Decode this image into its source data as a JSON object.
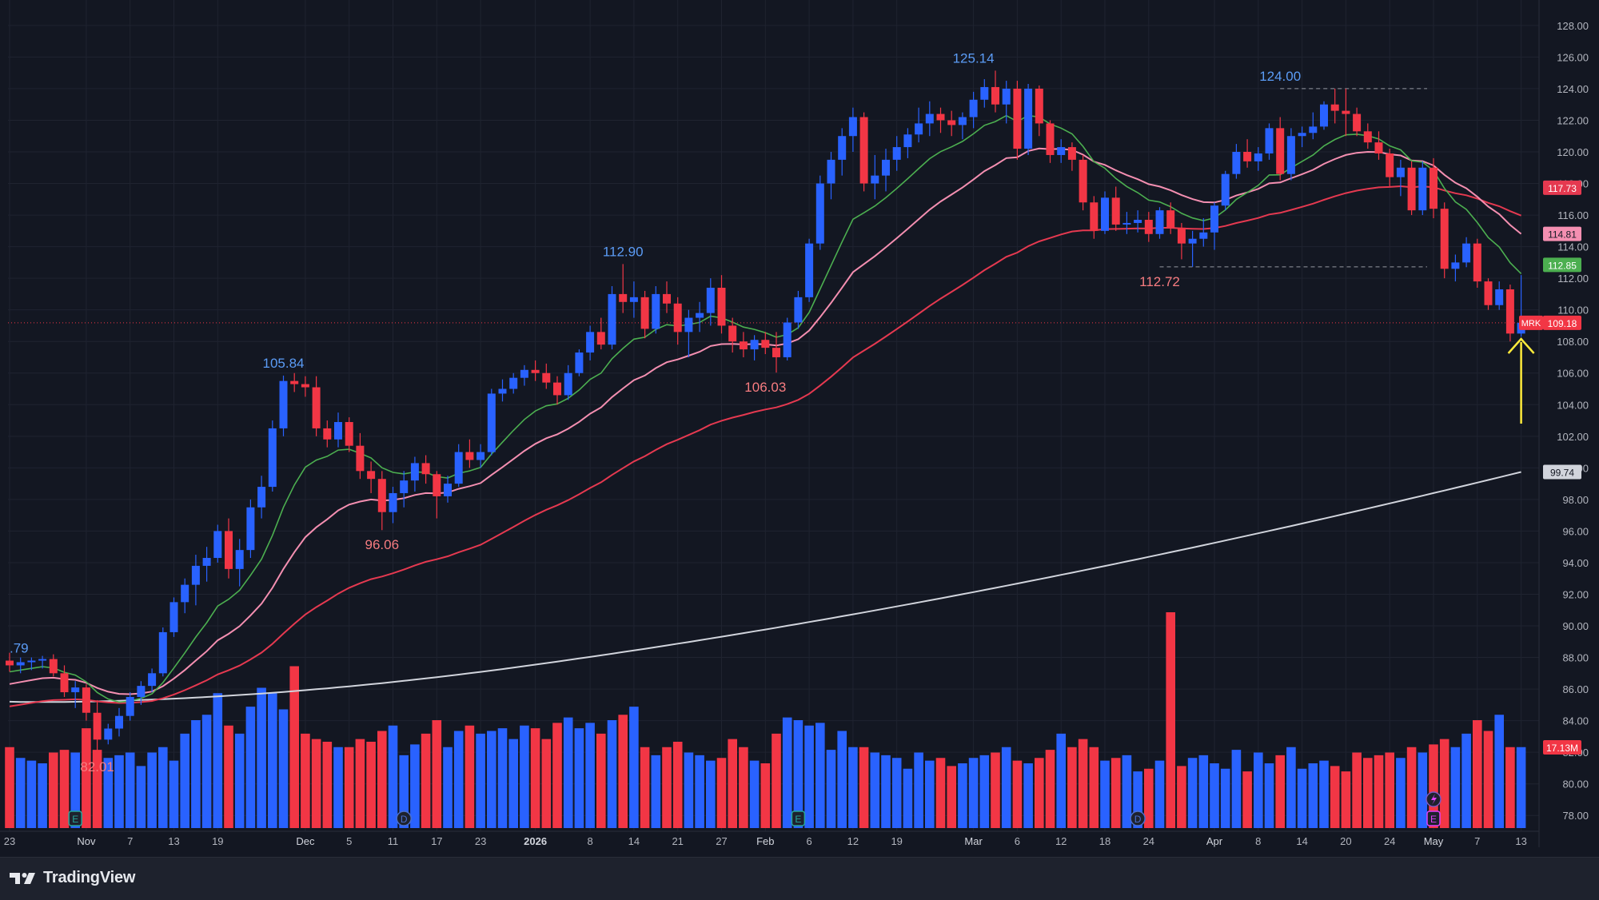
{
  "app": {
    "brand": "TradingView",
    "brand_icon": "tradingview-logo-icon"
  },
  "colors": {
    "background": "#131722",
    "grid": "#1f2330",
    "up": "#2962ff",
    "down": "#f23645",
    "ema_fast": "#4caf50",
    "ema_mid": "#f48fb1",
    "ema_slow": "#e53950",
    "sma_long": "#d1d4dc",
    "arrow": "#ffeb3b"
  },
  "chart_data": {
    "type": "candlestick",
    "symbol": "MRK",
    "last_price": "109.18",
    "price_axis": {
      "min": 77,
      "max": 128.6,
      "ticks": [
        "78.00",
        "80.00",
        "82.00",
        "84.00",
        "86.00",
        "88.00",
        "90.00",
        "92.00",
        "94.00",
        "96.00",
        "98.00",
        "100.00",
        "102.00",
        "104.00",
        "106.00",
        "108.00",
        "110.00",
        "112.00",
        "114.00",
        "116.00",
        "118.00",
        "120.00",
        "122.00",
        "124.00",
        "126.00",
        "128.00"
      ]
    },
    "x_axis_labels": [
      {
        "label": "23",
        "bar": 0
      },
      {
        "label": "Nov",
        "bar": 7
      },
      {
        "label": "7",
        "bar": 11
      },
      {
        "label": "13",
        "bar": 15
      },
      {
        "label": "19",
        "bar": 19
      },
      {
        "label": "Dec",
        "bar": 27
      },
      {
        "label": "5",
        "bar": 31
      },
      {
        "label": "11",
        "bar": 35
      },
      {
        "label": "17",
        "bar": 39
      },
      {
        "label": "23",
        "bar": 43
      },
      {
        "label": "2026",
        "bar": 48
      },
      {
        "label": "8",
        "bar": 53
      },
      {
        "label": "14",
        "bar": 57
      },
      {
        "label": "21",
        "bar": 61
      },
      {
        "label": "27",
        "bar": 65
      },
      {
        "label": "Feb",
        "bar": 69
      },
      {
        "label": "6",
        "bar": 73
      },
      {
        "label": "12",
        "bar": 77
      },
      {
        "label": "19",
        "bar": 81
      },
      {
        "label": "Mar",
        "bar": 88
      },
      {
        "label": "6",
        "bar": 92
      },
      {
        "label": "12",
        "bar": 96
      },
      {
        "label": "18",
        "bar": 100
      },
      {
        "label": "24",
        "bar": 104
      },
      {
        "label": "Apr",
        "bar": 110
      },
      {
        "label": "8",
        "bar": 114
      },
      {
        "label": "14",
        "bar": 118
      },
      {
        "label": "20",
        "bar": 122
      },
      {
        "label": "24",
        "bar": 126
      },
      {
        "label": "May",
        "bar": 130
      },
      {
        "label": "7",
        "bar": 134
      },
      {
        "label": "13",
        "bar": 138
      }
    ],
    "candles": [
      [
        87.8,
        88.3,
        87.1,
        87.5
      ],
      [
        87.5,
        88.0,
        87.0,
        87.7
      ],
      [
        87.7,
        88.0,
        87.2,
        87.8
      ],
      [
        87.8,
        88.1,
        87.3,
        87.9
      ],
      [
        87.9,
        88.2,
        86.8,
        87.0
      ],
      [
        87.0,
        87.5,
        85.5,
        85.8
      ],
      [
        85.8,
        86.5,
        84.8,
        86.1
      ],
      [
        86.1,
        86.3,
        84.0,
        84.5
      ],
      [
        84.5,
        85.3,
        82.0,
        82.8
      ],
      [
        82.8,
        83.8,
        82.5,
        83.5
      ],
      [
        83.5,
        84.8,
        83.0,
        84.3
      ],
      [
        84.3,
        85.8,
        84.0,
        85.5
      ],
      [
        85.5,
        86.5,
        85.0,
        86.2
      ],
      [
        86.2,
        87.3,
        85.8,
        87.0
      ],
      [
        87.0,
        89.9,
        86.8,
        89.6
      ],
      [
        89.6,
        91.8,
        89.3,
        91.5
      ],
      [
        91.5,
        93.0,
        90.8,
        92.6
      ],
      [
        92.6,
        94.5,
        91.3,
        93.8
      ],
      [
        93.8,
        95.0,
        92.8,
        94.3
      ],
      [
        94.3,
        96.4,
        94.0,
        96.0
      ],
      [
        96.0,
        96.8,
        93.0,
        93.6
      ],
      [
        93.6,
        95.5,
        92.5,
        94.8
      ],
      [
        94.8,
        98.0,
        94.3,
        97.5
      ],
      [
        97.5,
        99.5,
        96.8,
        98.8
      ],
      [
        98.8,
        103.0,
        98.5,
        102.5
      ],
      [
        102.5,
        105.84,
        102.0,
        105.5
      ],
      [
        105.5,
        106.0,
        104.8,
        105.3
      ],
      [
        105.3,
        105.8,
        104.5,
        105.1
      ],
      [
        105.1,
        105.8,
        102.0,
        102.5
      ],
      [
        102.5,
        103.0,
        101.3,
        101.8
      ],
      [
        101.8,
        103.5,
        101.3,
        102.9
      ],
      [
        102.9,
        103.2,
        101.0,
        101.4
      ],
      [
        101.4,
        102.2,
        99.3,
        99.8
      ],
      [
        99.8,
        100.4,
        98.4,
        99.3
      ],
      [
        99.3,
        99.8,
        96.06,
        97.2
      ],
      [
        97.2,
        98.8,
        96.5,
        98.4
      ],
      [
        98.4,
        99.8,
        97.5,
        99.2
      ],
      [
        99.2,
        100.7,
        98.5,
        100.3
      ],
      [
        100.3,
        100.8,
        99.0,
        99.6
      ],
      [
        99.6,
        99.8,
        96.8,
        98.2
      ],
      [
        98.2,
        99.5,
        97.8,
        99.0
      ],
      [
        99.0,
        101.5,
        98.8,
        101.0
      ],
      [
        101.0,
        101.8,
        100.0,
        100.5
      ],
      [
        100.5,
        101.5,
        100.0,
        101.0
      ],
      [
        101.0,
        105.0,
        100.8,
        104.7
      ],
      [
        104.7,
        105.6,
        104.2,
        105.0
      ],
      [
        105.0,
        106.0,
        104.7,
        105.7
      ],
      [
        105.7,
        106.5,
        105.2,
        106.2
      ],
      [
        106.2,
        106.8,
        105.5,
        106.0
      ],
      [
        106.0,
        106.6,
        105.0,
        105.4
      ],
      [
        105.4,
        105.8,
        104.0,
        104.6
      ],
      [
        104.6,
        106.5,
        104.3,
        106.0
      ],
      [
        106.0,
        107.5,
        105.8,
        107.3
      ],
      [
        107.3,
        109.0,
        106.8,
        108.6
      ],
      [
        108.6,
        109.5,
        107.5,
        107.8
      ],
      [
        107.8,
        111.5,
        107.5,
        111.0
      ],
      [
        111.0,
        112.9,
        109.8,
        110.5
      ],
      [
        110.5,
        111.8,
        109.5,
        110.8
      ],
      [
        110.8,
        111.2,
        108.2,
        108.8
      ],
      [
        108.8,
        111.5,
        108.5,
        111.0
      ],
      [
        111.0,
        111.8,
        109.8,
        110.4
      ],
      [
        110.4,
        110.8,
        107.8,
        108.6
      ],
      [
        108.6,
        110.0,
        107.0,
        109.5
      ],
      [
        109.5,
        110.5,
        108.6,
        109.8
      ],
      [
        109.8,
        112.0,
        109.0,
        111.4
      ],
      [
        111.4,
        112.2,
        108.5,
        109.0
      ],
      [
        109.0,
        109.5,
        107.3,
        108.0
      ],
      [
        108.0,
        108.6,
        107.0,
        107.5
      ],
      [
        107.5,
        108.4,
        106.8,
        108.1
      ],
      [
        108.1,
        108.6,
        107.2,
        107.6
      ],
      [
        107.6,
        108.6,
        106.03,
        107.0
      ],
      [
        107.0,
        109.5,
        106.8,
        109.2
      ],
      [
        109.2,
        111.2,
        108.8,
        110.8
      ],
      [
        110.8,
        114.5,
        110.5,
        114.2
      ],
      [
        114.2,
        118.5,
        113.8,
        118.0
      ],
      [
        118.0,
        120.0,
        117.0,
        119.5
      ],
      [
        119.5,
        121.5,
        118.5,
        121.0
      ],
      [
        121.0,
        122.8,
        120.0,
        122.2
      ],
      [
        122.2,
        122.5,
        117.5,
        118.0
      ],
      [
        118.0,
        119.8,
        117.0,
        118.5
      ],
      [
        118.5,
        120.2,
        117.5,
        119.5
      ],
      [
        119.5,
        121.0,
        118.8,
        120.3
      ],
      [
        120.3,
        121.5,
        119.6,
        121.1
      ],
      [
        121.1,
        122.8,
        120.6,
        121.8
      ],
      [
        121.8,
        123.2,
        121.0,
        122.4
      ],
      [
        122.4,
        122.8,
        121.2,
        122.0
      ],
      [
        122.0,
        122.6,
        121.0,
        121.7
      ],
      [
        121.7,
        122.5,
        120.8,
        122.2
      ],
      [
        122.2,
        123.8,
        121.5,
        123.3
      ],
      [
        123.3,
        124.6,
        122.8,
        124.1
      ],
      [
        124.1,
        125.14,
        122.5,
        123.0
      ],
      [
        123.0,
        124.5,
        121.8,
        124.0
      ],
      [
        124.0,
        124.5,
        119.5,
        120.2
      ],
      [
        120.2,
        124.3,
        119.8,
        124.0
      ],
      [
        124.0,
        124.2,
        121.0,
        121.8
      ],
      [
        121.8,
        122.0,
        119.3,
        119.8
      ],
      [
        119.8,
        120.8,
        119.3,
        120.3
      ],
      [
        120.3,
        120.6,
        118.8,
        119.5
      ],
      [
        119.5,
        119.8,
        116.3,
        116.8
      ],
      [
        116.8,
        117.2,
        114.5,
        115.0
      ],
      [
        115.0,
        117.5,
        114.8,
        117.1
      ],
      [
        117.1,
        117.8,
        115.0,
        115.4
      ],
      [
        115.4,
        116.2,
        114.8,
        115.5
      ],
      [
        115.5,
        116.3,
        114.9,
        115.7
      ],
      [
        115.7,
        116.2,
        114.3,
        114.8
      ],
      [
        114.8,
        116.5,
        114.5,
        116.3
      ],
      [
        116.3,
        116.8,
        114.8,
        115.2
      ],
      [
        115.2,
        115.5,
        113.2,
        114.2
      ],
      [
        114.2,
        115.0,
        112.72,
        114.5
      ],
      [
        114.5,
        115.8,
        114.0,
        114.9
      ],
      [
        114.9,
        116.8,
        113.8,
        116.6
      ],
      [
        116.6,
        118.8,
        116.3,
        118.6
      ],
      [
        118.6,
        120.5,
        118.3,
        120.0
      ],
      [
        120.0,
        120.8,
        119.0,
        119.4
      ],
      [
        119.4,
        120.3,
        118.8,
        119.9
      ],
      [
        119.9,
        121.8,
        119.5,
        121.5
      ],
      [
        121.5,
        122.2,
        118.2,
        118.6
      ],
      [
        118.6,
        121.5,
        118.2,
        121.0
      ],
      [
        121.0,
        121.6,
        120.3,
        121.2
      ],
      [
        121.2,
        122.5,
        120.8,
        121.6
      ],
      [
        121.6,
        123.2,
        121.4,
        123.0
      ],
      [
        123.0,
        124.0,
        121.8,
        122.6
      ],
      [
        122.6,
        124.0,
        121.0,
        122.4
      ],
      [
        122.4,
        122.8,
        121.0,
        121.3
      ],
      [
        121.3,
        121.8,
        120.2,
        120.6
      ],
      [
        120.6,
        121.3,
        119.5,
        119.9
      ],
      [
        119.9,
        120.2,
        117.8,
        118.4
      ],
      [
        118.4,
        119.5,
        117.2,
        119.0
      ],
      [
        119.0,
        119.4,
        116.0,
        116.3
      ],
      [
        116.3,
        119.4,
        116.0,
        119.0
      ],
      [
        119.0,
        119.6,
        115.8,
        116.4
      ],
      [
        116.4,
        116.8,
        112.0,
        112.6
      ],
      [
        112.6,
        113.5,
        111.8,
        113.0
      ],
      [
        113.0,
        114.6,
        112.7,
        114.2
      ],
      [
        114.2,
        114.5,
        111.4,
        111.8
      ],
      [
        111.8,
        112.0,
        110.0,
        110.3
      ],
      [
        110.3,
        111.8,
        110.0,
        111.3
      ],
      [
        111.3,
        111.6,
        108.0,
        108.5
      ],
      [
        108.5,
        112.2,
        108.3,
        109.18
      ]
    ],
    "volume_ranks": [
      0.3,
      0.26,
      0.25,
      0.24,
      0.28,
      0.29,
      0.28,
      0.37,
      0.29,
      0.26,
      0.27,
      0.28,
      0.23,
      0.28,
      0.3,
      0.25,
      0.35,
      0.4,
      0.42,
      0.5,
      0.38,
      0.35,
      0.45,
      0.52,
      0.5,
      0.44,
      0.6,
      0.35,
      0.33,
      0.32,
      0.3,
      0.3,
      0.33,
      0.32,
      0.36,
      0.38,
      0.27,
      0.31,
      0.35,
      0.4,
      0.3,
      0.36,
      0.38,
      0.35,
      0.36,
      0.37,
      0.33,
      0.38,
      0.37,
      0.33,
      0.39,
      0.41,
      0.37,
      0.39,
      0.35,
      0.4,
      0.42,
      0.45,
      0.3,
      0.27,
      0.3,
      0.32,
      0.28,
      0.27,
      0.25,
      0.26,
      0.33,
      0.3,
      0.25,
      0.24,
      0.35,
      0.41,
      0.4,
      0.38,
      0.39,
      0.29,
      0.36,
      0.3,
      0.3,
      0.28,
      0.27,
      0.26,
      0.22,
      0.28,
      0.25,
      0.26,
      0.23,
      0.24,
      0.26,
      0.27,
      0.28,
      0.3,
      0.25,
      0.24,
      0.26,
      0.29,
      0.35,
      0.3,
      0.33,
      0.3,
      0.25,
      0.26,
      0.27,
      0.21,
      0.22,
      0.25,
      0.8,
      0.23,
      0.26,
      0.27,
      0.24,
      0.22,
      0.29,
      0.21,
      0.28,
      0.24,
      0.27,
      0.3,
      0.22,
      0.24,
      0.25,
      0.23,
      0.21,
      0.28,
      0.26,
      0.27,
      0.28,
      0.26,
      0.3,
      0.28,
      0.31,
      0.33,
      0.3,
      0.35,
      0.4,
      0.36,
      0.42
    ],
    "volume_bar_heights": [
      0.085,
      0.05,
      0.05,
      0.05,
      0.06,
      0.045,
      0.07,
      0.065,
      0.105,
      0.08,
      0.085,
      0.08,
      0.06,
      0.065,
      0.06,
      0.055,
      0.08,
      0.085,
      0.095,
      0.15,
      0.075,
      0.085,
      0.07,
      0.08,
      0.085,
      0.095,
      0.155,
      0.105,
      0.085,
      0.075,
      0.05,
      0.075,
      0.075,
      0.075,
      0.095,
      0.085,
      0.08,
      0.11,
      0.08,
      0.1,
      0.08,
      0.065,
      0.095,
      0.08,
      0.1,
      0.08,
      0.075,
      0.065,
      0.08,
      0.1,
      0.085,
      0.09,
      0.085,
      0.07,
      0.1,
      0.09,
      0.095,
      0.1,
      0.065,
      0.065,
      0.06,
      0.08,
      0.07,
      0.075,
      0.09,
      0.085,
      0.09,
      0.06,
      0.06,
      0.06,
      0.09,
      0.145,
      0.15,
      0.14,
      0.135,
      0.11,
      0.085,
      0.075,
      0.075,
      0.085,
      0.07,
      0.06,
      0.06,
      0.06,
      0.055,
      0.055,
      0.055,
      0.055,
      0.065,
      0.055,
      0.07,
      0.075,
      0.06,
      0.055,
      0.065,
      0.075,
      0.085,
      0.07,
      0.07,
      0.065,
      0.06,
      0.06,
      0.055,
      0.05,
      0.055,
      0.055,
      0.065,
      0.06,
      0.055,
      0.06,
      0.055,
      0.065,
      0.055,
      0.055,
      0.05,
      0.055,
      0.065,
      0.06,
      0.05,
      0.06,
      0.065,
      0.06,
      0.055,
      0.05,
      0.06,
      0.065,
      0.075,
      0.06,
      0.065,
      0.055,
      0.06,
      0.05,
      0.055,
      0.055,
      0.06,
      0.065,
      0.085
    ],
    "volume_scale_max": 0.8,
    "volume_label": "17.13M",
    "ma_labels": {
      "ema_fast": "112.85",
      "ema_mid": "114.81",
      "ema_slow": "117.73",
      "sma_long": "99.74"
    },
    "annotations": [
      {
        "text": "105.84",
        "bar": 25,
        "price": 105.84,
        "kind": "high"
      },
      {
        "text": "112.90",
        "bar": 56,
        "price": 112.9,
        "kind": "high"
      },
      {
        "text": "125.14",
        "bar": 88,
        "price": 125.14,
        "kind": "high"
      },
      {
        "text": "124.00",
        "bar": 116,
        "price": 124.0,
        "kind": "high"
      },
      {
        "text": "82.01",
        "bar": 8,
        "price": 82.01,
        "kind": "low"
      },
      {
        "text": "96.06",
        "bar": 34,
        "price": 96.06,
        "kind": "low"
      },
      {
        "text": "106.03",
        "bar": 69,
        "price": 106.03,
        "kind": "low"
      },
      {
        "text": "112.72",
        "bar": 105,
        "price": 112.72,
        "kind": "low"
      },
      {
        "text": ".79",
        "bar": 0,
        "price": 87.79,
        "kind": "high"
      }
    ],
    "event_markers": [
      {
        "letter": "E",
        "bar": 6,
        "kind": "earnings",
        "color": "#26a69a"
      },
      {
        "letter": "D",
        "bar": 36,
        "kind": "dividend",
        "color": "#4a6fd1"
      },
      {
        "letter": "E",
        "bar": 72,
        "kind": "earnings",
        "color": "#26a69a"
      },
      {
        "letter": "D",
        "bar": 103,
        "kind": "dividend",
        "color": "#4a6fd1"
      },
      {
        "letter": "E",
        "bar": 130,
        "kind": "earnings-upcoming",
        "color": "#e040fb"
      }
    ],
    "dashed_levels": [
      {
        "price": 124.0,
        "from_bar": 116
      },
      {
        "price": 112.72,
        "from_bar": 105
      }
    ],
    "grid": true,
    "legend": "none"
  }
}
